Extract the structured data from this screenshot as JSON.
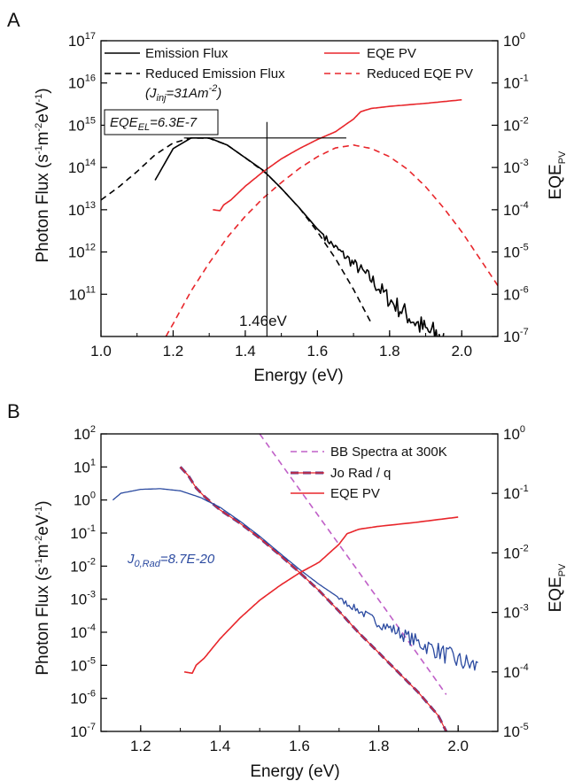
{
  "chart_data": [
    {
      "panel_label": "A",
      "type": "line",
      "xlabel": "Energy (eV)",
      "ylabel": "Photon Flux (s-1m-2eV-1)",
      "ylabel_parts": [
        "Photon Flux (s",
        "-1",
        "m",
        "-2",
        "eV",
        "-1",
        ")"
      ],
      "y2label_parts": [
        "EQE",
        "PV"
      ],
      "xlim": [
        1.0,
        2.1
      ],
      "ylim": [
        10000000000.0,
        1e+17
      ],
      "yscale": "log",
      "y2lim": [
        1e-07,
        1
      ],
      "y2scale": "log",
      "xticks": [
        {
          "v": 1.0,
          "label": "1.0"
        },
        {
          "v": 1.2,
          "label": "1.2"
        },
        {
          "v": 1.4,
          "label": "1.4"
        },
        {
          "v": 1.6,
          "label": "1.6"
        },
        {
          "v": 1.8,
          "label": "1.8"
        },
        {
          "v": 2.0,
          "label": "2.0"
        }
      ],
      "yticks": [
        {
          "exp": 11,
          "base": "10",
          "sup": "11"
        },
        {
          "exp": 12,
          "base": "10",
          "sup": "12"
        },
        {
          "exp": 13,
          "base": "10",
          "sup": "13"
        },
        {
          "exp": 14,
          "base": "10",
          "sup": "14"
        },
        {
          "exp": 15,
          "base": "10",
          "sup": "15"
        },
        {
          "exp": 16,
          "base": "10",
          "sup": "16"
        },
        {
          "exp": 17,
          "base": "10",
          "sup": "17"
        }
      ],
      "y2ticks": [
        {
          "exp": -7,
          "base": "10",
          "sup": "-7"
        },
        {
          "exp": -6,
          "base": "10",
          "sup": "-6"
        },
        {
          "exp": -5,
          "base": "10",
          "sup": "-5"
        },
        {
          "exp": -4,
          "base": "10",
          "sup": "-4"
        },
        {
          "exp": -3,
          "base": "10",
          "sup": "-3"
        },
        {
          "exp": -2,
          "base": "10",
          "sup": "-2"
        },
        {
          "exp": -1,
          "base": "10",
          "sup": "-1"
        },
        {
          "exp": 0,
          "base": "10",
          "sup": "0"
        }
      ],
      "series": [
        {
          "name": "Emission Flux",
          "axis": "left",
          "color": "#000000",
          "dash": "",
          "width": 1.6,
          "noisy": true,
          "x": [
            1.15,
            1.2,
            1.25,
            1.3,
            1.35,
            1.4,
            1.45,
            1.46,
            1.5,
            1.55,
            1.6,
            1.65,
            1.7,
            1.75,
            1.8,
            1.85,
            1.9,
            1.95
          ],
          "y": [
            50000000000000.0,
            280000000000000.0,
            500000000000000.0,
            500000000000000.0,
            340000000000000.0,
            170000000000000.0,
            85000000000000.0,
            70000000000000.0,
            32000000000000.0,
            11000000000000.0,
            3500000000000.0,
            1400000000000.0,
            600000000000.0,
            260000000000.0,
            90000000000.0,
            40000000000.0,
            18000000000.0,
            12000000000.0
          ]
        },
        {
          "name": "Reduced Emission Flux",
          "axis": "left",
          "color": "#000000",
          "dash": "7,5",
          "width": 1.6,
          "x": [
            1.0,
            1.05,
            1.1,
            1.15,
            1.2,
            1.25,
            1.3,
            1.35,
            1.4,
            1.46,
            1.5,
            1.55,
            1.6,
            1.65,
            1.7,
            1.75
          ],
          "y": [
            17000000000000.0,
            35000000000000.0,
            80000000000000.0,
            200000000000000.0,
            380000000000000.0,
            500000000000000.0,
            490000000000000.0,
            340000000000000.0,
            170000000000000.0,
            70000000000000.0,
            32000000000000.0,
            11000000000000.0,
            3000000000000.0,
            700000000000.0,
            130000000000.0,
            20000000000.0
          ]
        },
        {
          "name": "EQE PV",
          "axis": "right",
          "color": "#e8262b",
          "dash": "",
          "width": 1.6,
          "x": [
            1.31,
            1.33,
            1.34,
            1.36,
            1.4,
            1.45,
            1.5,
            1.55,
            1.6,
            1.65,
            1.7,
            1.72,
            1.75,
            1.8,
            1.9,
            2.0
          ],
          "y": [
            0.0001,
            9.5e-05,
            0.00013,
            0.00017,
            0.00036,
            0.0008,
            0.0016,
            0.0028,
            0.0046,
            0.007,
            0.014,
            0.021,
            0.025,
            0.028,
            0.033,
            0.04
          ]
        },
        {
          "name": "Reduced EQE PV",
          "axis": "right",
          "color": "#e8262b",
          "dash": "7,5",
          "width": 1.6,
          "x": [
            1.18,
            1.2,
            1.25,
            1.3,
            1.35,
            1.4,
            1.45,
            1.5,
            1.55,
            1.6,
            1.65,
            1.7,
            1.75,
            1.8,
            1.85,
            1.9,
            1.95,
            2.0,
            2.05,
            2.1
          ],
          "y": [
            1e-07,
            2e-07,
            1.2e-06,
            5.5e-06,
            2.2e-05,
            7e-05,
            0.00019,
            0.00044,
            0.00095,
            0.0018,
            0.0029,
            0.0034,
            0.0028,
            0.0018,
            0.0009,
            0.00035,
            0.00011,
            3e-05,
            7e-06,
            1.6e-06
          ]
        }
      ],
      "annotations": {
        "crosshair_x": 1.46,
        "crosshair_flux": 500000000000000.0,
        "crosshair_x0": 1.23,
        "crosshair_x1": 1.68,
        "vertical_label": "1.46eV",
        "box_main": "EQE",
        "box_sub": "EL",
        "box_rest": "=6.3E-7",
        "jinj_open": "(J",
        "jinj_sub": "inj",
        "jinj_mid": "=31Am",
        "jinj_sup": "-2",
        "jinj_close": ")"
      }
    },
    {
      "panel_label": "B",
      "type": "line",
      "xlabel": "Energy (eV)",
      "ylabel": "Photon Flux (s-1m-2eV-1)",
      "ylabel_parts": [
        "Photon Flux (s",
        "-1",
        "m",
        "-2",
        "eV",
        "-1",
        ")"
      ],
      "y2label_parts": [
        "EQE",
        "PV"
      ],
      "xlim": [
        1.1,
        2.1
      ],
      "ylim": [
        1e-07,
        100
      ],
      "yscale": "log",
      "y2lim": [
        1e-05,
        1
      ],
      "y2scale": "log",
      "xticks": [
        {
          "v": 1.2,
          "label": "1.2"
        },
        {
          "v": 1.4,
          "label": "1.4"
        },
        {
          "v": 1.6,
          "label": "1.6"
        },
        {
          "v": 1.8,
          "label": "1.8"
        },
        {
          "v": 2.0,
          "label": "2.0"
        }
      ],
      "yticks": [
        {
          "exp": -7,
          "base": "10",
          "sup": "-7"
        },
        {
          "exp": -6,
          "base": "10",
          "sup": "-6"
        },
        {
          "exp": -5,
          "base": "10",
          "sup": "-5"
        },
        {
          "exp": -4,
          "base": "10",
          "sup": "-4"
        },
        {
          "exp": -3,
          "base": "10",
          "sup": "-3"
        },
        {
          "exp": -2,
          "base": "10",
          "sup": "-2"
        },
        {
          "exp": -1,
          "base": "10",
          "sup": "-1"
        },
        {
          "exp": 0,
          "base": "10",
          "sup": "0"
        },
        {
          "exp": 1,
          "base": "10",
          "sup": "1"
        },
        {
          "exp": 2,
          "base": "10",
          "sup": "2"
        }
      ],
      "y2ticks": [
        {
          "exp": -5,
          "base": "10",
          "sup": "-5"
        },
        {
          "exp": -4,
          "base": "10",
          "sup": "-4"
        },
        {
          "exp": -3,
          "base": "10",
          "sup": "-3"
        },
        {
          "exp": -2,
          "base": "10",
          "sup": "-2"
        },
        {
          "exp": -1,
          "base": "10",
          "sup": "-1"
        },
        {
          "exp": 0,
          "base": "10",
          "sup": "0"
        }
      ],
      "series": [
        {
          "name": "BB Spectra at 300K",
          "axis": "left",
          "color": "#c060c8",
          "dash": "7,5",
          "width": 1.6,
          "x": [
            1.5,
            1.6,
            1.7,
            1.8,
            1.9,
            1.97
          ],
          "y": [
            100,
            2.1,
            0.045,
            0.00095,
            2e-05,
            1.3e-06
          ]
        },
        {
          "name": "Jo Rad / q",
          "axis": "left",
          "color": "#5a3a8c",
          "dash": "9,5",
          "width": 3,
          "x": [
            1.3,
            1.32,
            1.34,
            1.36,
            1.4,
            1.45,
            1.5,
            1.55,
            1.6,
            1.65,
            1.7,
            1.75,
            1.8,
            1.85,
            1.9,
            1.95,
            1.97
          ],
          "y": [
            10,
            5.5,
            2.3,
            1.3,
            0.5,
            0.2,
            0.07,
            0.022,
            0.0065,
            0.0018,
            0.00043,
            9.5e-05,
            2.4e-05,
            6e-06,
            1.5e-06,
            3e-07,
            1e-07
          ]
        },
        {
          "name": "",
          "axis": "left",
          "color": "#e8262b",
          "dash": "",
          "width": 1.2,
          "x": [
            1.3,
            1.32,
            1.34,
            1.36,
            1.4,
            1.45,
            1.5,
            1.55,
            1.6,
            1.65,
            1.7,
            1.75,
            1.8,
            1.85,
            1.9,
            1.95,
            1.97
          ],
          "y": [
            10,
            5.5,
            2.3,
            1.3,
            0.5,
            0.2,
            0.07,
            0.022,
            0.0065,
            0.0018,
            0.00043,
            9.5e-05,
            2.4e-05,
            6e-06,
            1.5e-06,
            3e-07,
            1e-07
          ]
        },
        {
          "name": "",
          "axis": "left",
          "color": "#2b4aa0",
          "dash": "",
          "width": 1.3,
          "noisy": true,
          "noise_from": 1.7,
          "x": [
            1.13,
            1.15,
            1.2,
            1.25,
            1.3,
            1.35,
            1.4,
            1.45,
            1.5,
            1.55,
            1.6,
            1.65,
            1.7,
            1.75,
            1.8,
            1.85,
            1.9,
            1.95,
            2.0,
            2.05
          ],
          "y": [
            1.0,
            1.6,
            2.1,
            2.2,
            1.9,
            1.2,
            0.6,
            0.23,
            0.08,
            0.025,
            0.008,
            0.0028,
            0.0011,
            0.0005,
            0.00022,
            0.00012,
            6e-05,
            3.5e-05,
            1.8e-05,
            1.2e-05
          ]
        },
        {
          "name": "EQE PV",
          "axis": "right",
          "color": "#e8262b",
          "dash": "",
          "width": 1.6,
          "x": [
            1.31,
            1.33,
            1.34,
            1.36,
            1.4,
            1.45,
            1.5,
            1.55,
            1.6,
            1.65,
            1.7,
            1.72,
            1.75,
            1.8,
            1.9,
            2.0
          ],
          "y": [
            0.0001,
            9.5e-05,
            0.00013,
            0.00017,
            0.00036,
            0.0008,
            0.0016,
            0.0028,
            0.0046,
            0.007,
            0.014,
            0.021,
            0.025,
            0.028,
            0.033,
            0.04
          ]
        }
      ],
      "annotations": {
        "j0_main": "J",
        "j0_sub": "0,Rad",
        "j0_rest": "=8.7E-20"
      }
    }
  ]
}
